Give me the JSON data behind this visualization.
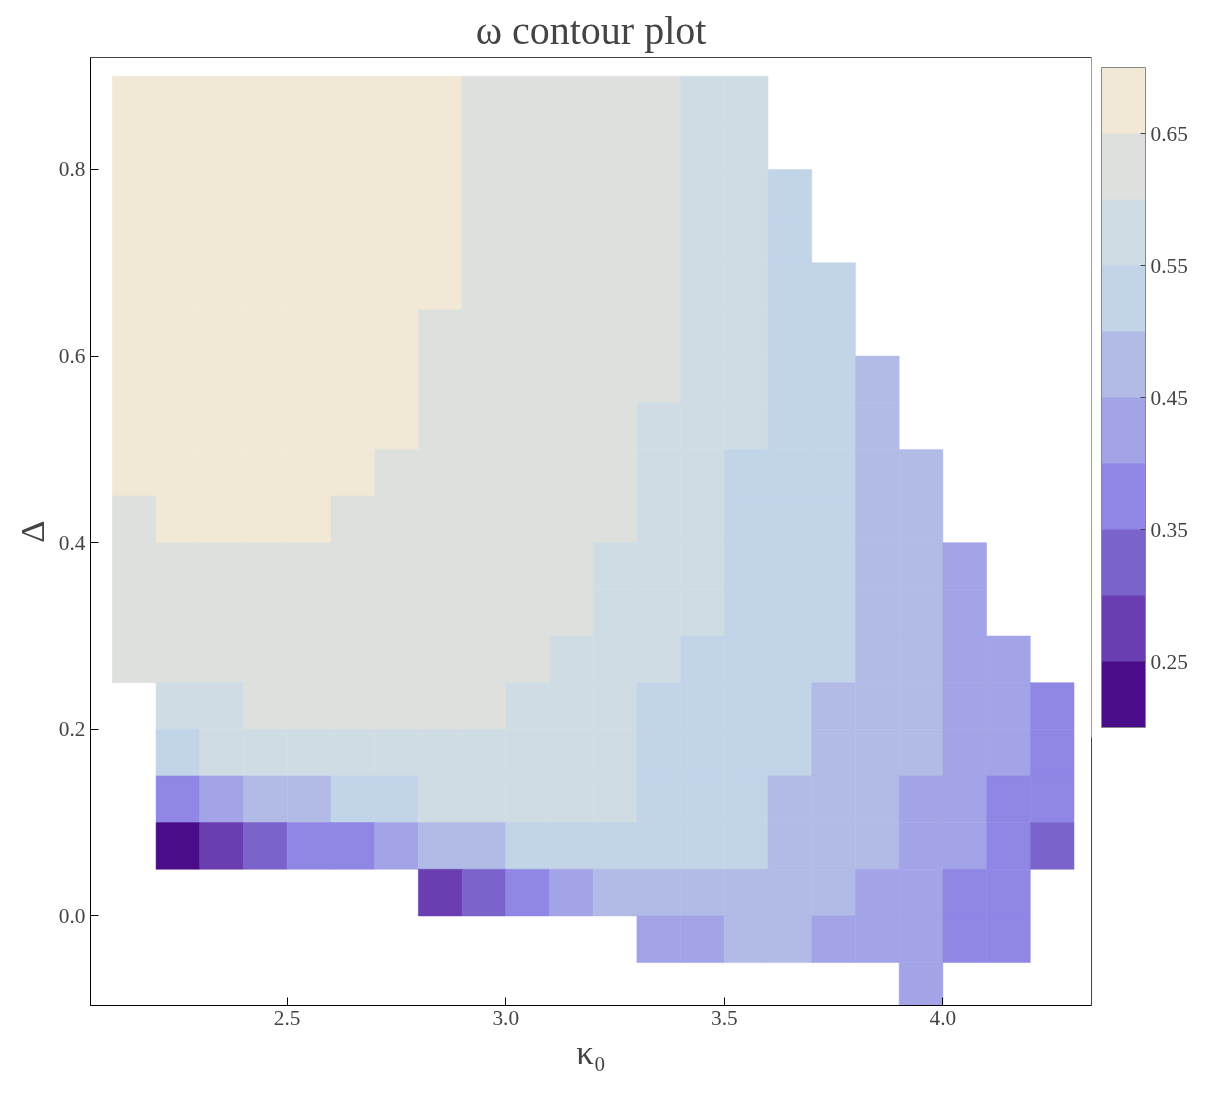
{
  "chart_data": {
    "type": "heatmap",
    "title": "ω contour plot",
    "xlabel": "κ₀",
    "ylabel": "Δ",
    "xlim": [
      2.05,
      4.34
    ],
    "ylim": [
      -0.096,
      0.92
    ],
    "xticks": [
      2.5,
      {
        "value": 3,
        "label": "3.0"
      },
      3.5,
      {
        "value": 4,
        "label": "4.0"
      }
    ],
    "yticks": [
      {
        "value": 0,
        "label": "0.0"
      },
      0.2,
      0.4,
      0.6,
      0.8
    ],
    "clim": [
      0.2,
      0.7
    ],
    "cticks": [
      0.25,
      0.35,
      0.45,
      0.55,
      0.65
    ],
    "colors": [
      "#4b0c8a",
      "#6a3db0",
      "#7b63cc",
      "#8f86e6",
      "#a3a3e8",
      "#b1bbe6",
      "#c1d4e8",
      "#d0dce4",
      "#dde0dc",
      "#f1e8d6"
    ],
    "x": [
      2.15,
      2.25,
      2.35,
      2.45,
      2.55,
      2.65,
      2.75,
      2.85,
      2.95,
      3.05,
      3.15,
      3.25,
      3.35,
      3.45,
      3.55,
      3.65,
      3.75,
      3.85,
      3.95,
      4.05,
      4.15,
      4.25
    ],
    "y": [
      0.875,
      0.825,
      0.775,
      0.725,
      0.675,
      0.625,
      0.575,
      0.525,
      0.475,
      0.425,
      0.375,
      0.325,
      0.275,
      0.225,
      0.175,
      0.125,
      0.075,
      0.025,
      -0.025,
      -0.075
    ],
    "cells": [
      [
        0.675,
        0.675,
        0.675,
        0.675,
        0.675,
        0.675,
        0.675,
        0.675,
        0.625,
        0.625,
        0.625,
        0.625,
        0.625,
        0.575,
        0.575,
        null,
        null,
        null,
        null,
        null,
        null,
        null
      ],
      [
        0.675,
        0.675,
        0.675,
        0.675,
        0.675,
        0.675,
        0.675,
        0.675,
        0.625,
        0.625,
        0.625,
        0.625,
        0.625,
        0.575,
        0.575,
        null,
        null,
        null,
        null,
        null,
        null,
        null
      ],
      [
        0.675,
        0.675,
        0.675,
        0.675,
        0.675,
        0.675,
        0.675,
        0.675,
        0.625,
        0.625,
        0.625,
        0.625,
        0.625,
        0.575,
        0.575,
        0.525,
        null,
        null,
        null,
        null,
        null,
        null
      ],
      [
        0.675,
        0.675,
        0.675,
        0.675,
        0.675,
        0.675,
        0.675,
        0.675,
        0.625,
        0.625,
        0.625,
        0.625,
        0.625,
        0.575,
        0.575,
        0.525,
        null,
        null,
        null,
        null,
        null,
        null
      ],
      [
        0.675,
        0.675,
        0.675,
        0.675,
        0.675,
        0.675,
        0.675,
        0.675,
        0.625,
        0.625,
        0.625,
        0.625,
        0.625,
        0.575,
        0.575,
        0.525,
        0.525,
        null,
        null,
        null,
        null,
        null
      ],
      [
        0.675,
        0.675,
        0.675,
        0.675,
        0.675,
        0.675,
        0.675,
        0.625,
        0.625,
        0.625,
        0.625,
        0.625,
        0.625,
        0.575,
        0.575,
        0.525,
        0.525,
        null,
        null,
        null,
        null,
        null
      ],
      [
        0.675,
        0.675,
        0.675,
        0.675,
        0.675,
        0.675,
        0.675,
        0.625,
        0.625,
        0.625,
        0.625,
        0.625,
        0.625,
        0.575,
        0.575,
        0.525,
        0.525,
        0.475,
        null,
        null,
        null,
        null
      ],
      [
        0.675,
        0.675,
        0.675,
        0.675,
        0.675,
        0.675,
        0.675,
        0.625,
        0.625,
        0.625,
        0.625,
        0.625,
        0.575,
        0.575,
        0.575,
        0.525,
        0.525,
        0.475,
        null,
        null,
        null,
        null
      ],
      [
        0.675,
        0.675,
        0.675,
        0.675,
        0.675,
        0.675,
        0.625,
        0.625,
        0.625,
        0.625,
        0.625,
        0.625,
        0.575,
        0.575,
        0.525,
        0.525,
        0.525,
        0.475,
        0.475,
        null,
        null,
        null
      ],
      [
        0.625,
        0.675,
        0.675,
        0.675,
        0.675,
        0.625,
        0.625,
        0.625,
        0.625,
        0.625,
        0.625,
        0.625,
        0.575,
        0.575,
        0.525,
        0.525,
        0.525,
        0.475,
        0.475,
        null,
        null,
        null
      ],
      [
        0.625,
        0.625,
        0.625,
        0.625,
        0.625,
        0.625,
        0.625,
        0.625,
        0.625,
        0.625,
        0.625,
        0.575,
        0.575,
        0.575,
        0.525,
        0.525,
        0.525,
        0.475,
        0.475,
        0.425,
        null,
        null
      ],
      [
        0.625,
        0.625,
        0.625,
        0.625,
        0.625,
        0.625,
        0.625,
        0.625,
        0.625,
        0.625,
        0.625,
        0.575,
        0.575,
        0.575,
        0.525,
        0.525,
        0.525,
        0.475,
        0.475,
        0.425,
        null,
        null
      ],
      [
        0.625,
        0.625,
        0.625,
        0.625,
        0.625,
        0.625,
        0.625,
        0.625,
        0.625,
        0.625,
        0.575,
        0.575,
        0.575,
        0.525,
        0.525,
        0.525,
        0.525,
        0.475,
        0.475,
        0.425,
        0.425,
        null
      ],
      [
        null,
        0.575,
        0.575,
        0.625,
        0.625,
        0.625,
        0.625,
        0.625,
        0.625,
        0.575,
        0.575,
        0.575,
        0.525,
        0.525,
        0.525,
        0.525,
        0.475,
        0.475,
        0.475,
        0.425,
        0.425,
        0.375
      ],
      [
        null,
        0.525,
        0.575,
        0.575,
        0.575,
        0.575,
        0.575,
        0.575,
        0.575,
        0.575,
        0.575,
        0.575,
        0.525,
        0.525,
        0.525,
        0.525,
        0.475,
        0.475,
        0.475,
        0.425,
        0.425,
        0.375
      ],
      [
        null,
        0.375,
        0.425,
        0.475,
        0.475,
        0.525,
        0.525,
        0.575,
        0.575,
        0.575,
        0.575,
        0.575,
        0.525,
        0.525,
        0.525,
        0.475,
        0.475,
        0.475,
        0.425,
        0.425,
        0.375,
        0.375
      ],
      [
        null,
        0.225,
        0.275,
        0.325,
        0.375,
        0.375,
        0.425,
        0.475,
        0.475,
        0.525,
        0.525,
        0.525,
        0.525,
        0.525,
        0.525,
        0.475,
        0.475,
        0.475,
        0.425,
        0.425,
        0.375,
        0.325
      ],
      [
        null,
        null,
        null,
        null,
        null,
        null,
        null,
        0.275,
        0.325,
        0.375,
        0.425,
        0.475,
        0.475,
        0.475,
        0.475,
        0.475,
        0.475,
        0.425,
        0.425,
        0.375,
        0.375,
        null
      ],
      [
        null,
        null,
        null,
        null,
        null,
        null,
        null,
        null,
        null,
        null,
        null,
        null,
        0.425,
        0.425,
        0.475,
        0.475,
        0.425,
        0.425,
        0.425,
        0.375,
        0.375,
        null
      ],
      [
        null,
        null,
        null,
        null,
        null,
        null,
        null,
        null,
        null,
        null,
        null,
        null,
        null,
        null,
        null,
        null,
        null,
        null,
        0.425,
        null,
        null,
        null
      ]
    ]
  }
}
